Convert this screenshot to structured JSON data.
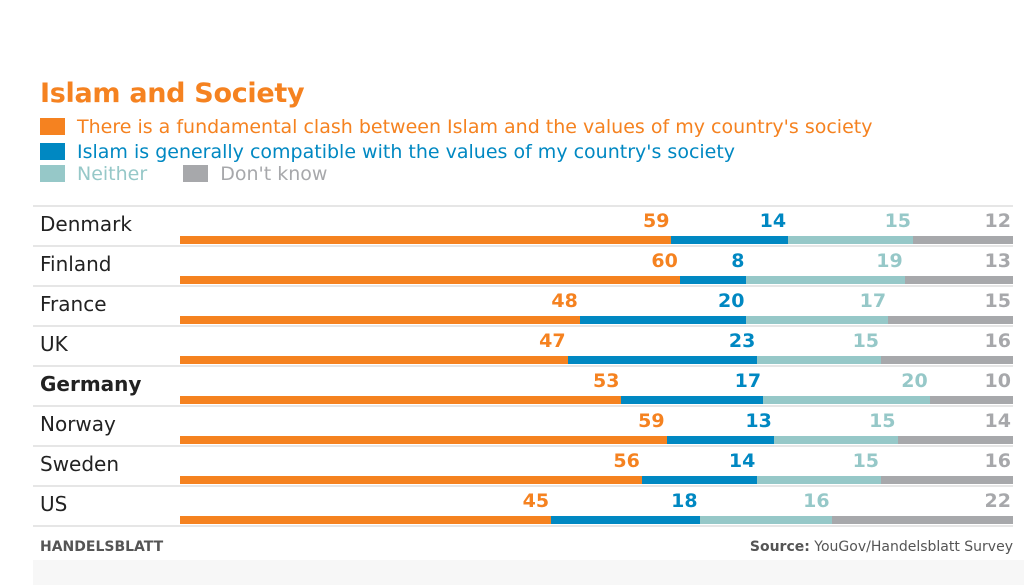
{
  "chart_data": {
    "type": "bar",
    "orientation": "horizontal-stacked",
    "title": "Islam and Society",
    "categories": [
      "Denmark",
      "Finland",
      "France",
      "UK",
      "Germany",
      "Norway",
      "Sweden",
      "US"
    ],
    "highlighted_category": "Germany",
    "series": [
      {
        "name": "There is a fundamental clash between Islam and the values of my country's society",
        "color": "#f58220",
        "values": [
          59,
          60,
          48,
          47,
          53,
          59,
          56,
          45
        ]
      },
      {
        "name": "Islam is generally compatible with the values of my country's society",
        "color": "#0088c2",
        "values": [
          14,
          8,
          20,
          23,
          17,
          13,
          14,
          18
        ]
      },
      {
        "name": "Neither",
        "color": "#96c8c8",
        "values": [
          15,
          19,
          17,
          15,
          20,
          15,
          15,
          16
        ]
      },
      {
        "name": "Don't know",
        "color": "#a7a8ab",
        "values": [
          12,
          13,
          15,
          16,
          10,
          14,
          16,
          22
        ]
      }
    ],
    "legend_placement": "top-left",
    "grid": false
  },
  "footer": {
    "brand": "HANDELSBLATT",
    "source_label": "Source:",
    "source": " YouGov/Handelsblatt Survey"
  }
}
